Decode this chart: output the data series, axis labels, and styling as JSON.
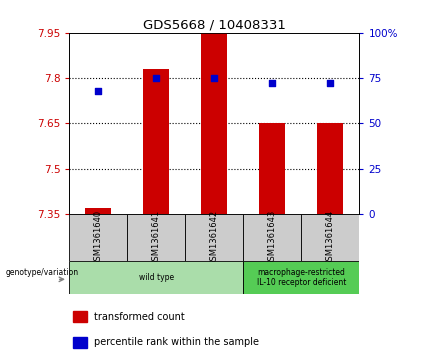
{
  "title": "GDS5668 / 10408331",
  "samples": [
    "GSM1361640",
    "GSM1361641",
    "GSM1361642",
    "GSM1361643",
    "GSM1361644"
  ],
  "bar_values": [
    7.37,
    7.83,
    7.95,
    7.65,
    7.65
  ],
  "percentile_values": [
    68,
    75,
    75,
    72,
    72
  ],
  "bar_color": "#CC0000",
  "dot_color": "#0000CC",
  "ylim_left": [
    7.35,
    7.95
  ],
  "ylim_right": [
    0,
    100
  ],
  "yticks_left": [
    7.35,
    7.5,
    7.65,
    7.8,
    7.95
  ],
  "yticks_right": [
    0,
    25,
    50,
    75,
    100
  ],
  "ytick_labels_left": [
    "7.35",
    "7.5",
    "7.65",
    "7.8",
    "7.95"
  ],
  "ytick_labels_right": [
    "0",
    "25",
    "50",
    "75",
    "100%"
  ],
  "hlines": [
    7.5,
    7.65,
    7.8
  ],
  "groups": [
    {
      "label": "wild type",
      "samples": [
        0,
        1,
        2
      ],
      "color": "#aaddaa"
    },
    {
      "label": "macrophage-restricted\nIL-10 receptor deficient",
      "samples": [
        3,
        4
      ],
      "color": "#55cc55"
    }
  ],
  "group_row_label": "genotype/variation",
  "legend_bar_label": "transformed count",
  "legend_dot_label": "percentile rank within the sample",
  "bar_width": 0.45,
  "bg_color": "#ffffff",
  "plot_bg_color": "#ffffff",
  "sample_box_color": "#cccccc",
  "left_tick_color": "#CC0000",
  "right_tick_color": "#0000CC"
}
